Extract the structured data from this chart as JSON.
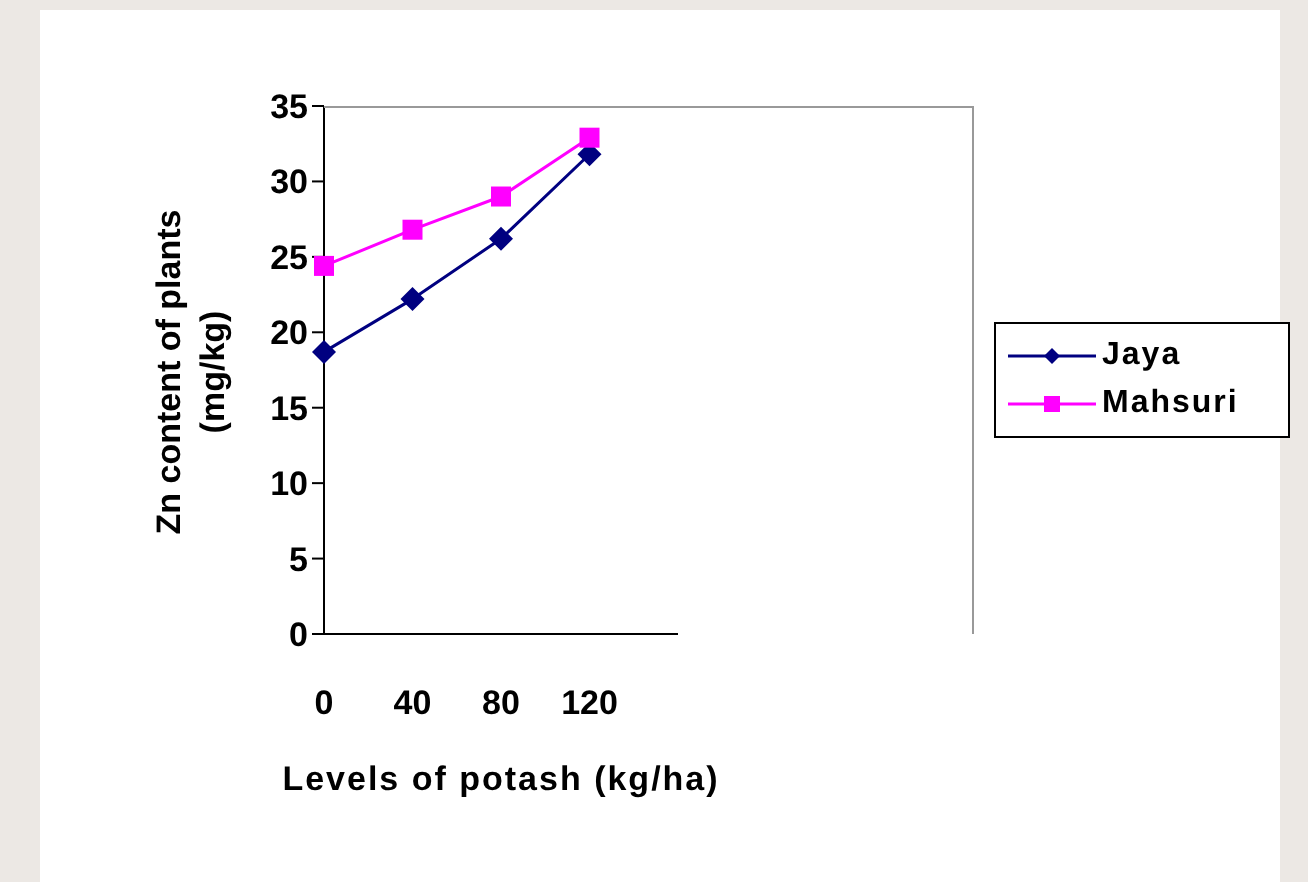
{
  "chart_data": {
    "type": "line",
    "xlabel": "Levels of potash (kg/ha)",
    "ylabel": "Zn content of plants (mg/kg)",
    "categories": [
      "0",
      "40",
      "80",
      "120",
      null
    ],
    "series": [
      {
        "name": "Jaya",
        "color": "#000080",
        "marker": "diamond",
        "values": [
          18.7,
          22.2,
          26.2,
          31.8,
          null
        ]
      },
      {
        "name": "Mahsuri",
        "color": "#ff00ff",
        "marker": "square",
        "values": [
          24.4,
          26.8,
          29.0,
          32.9,
          null
        ]
      }
    ],
    "ylim": [
      0,
      35
    ],
    "yticks": [
      0,
      5,
      10,
      15,
      20,
      25,
      30,
      35
    ],
    "grid": false,
    "legend": "right"
  }
}
